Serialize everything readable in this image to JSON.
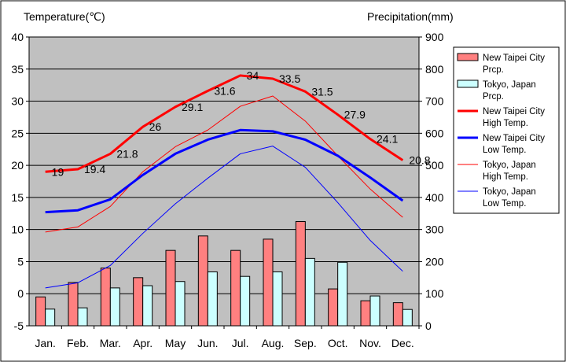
{
  "chart_data": {
    "type": "bar",
    "left_axis_title": "Temperature(℃)",
    "right_axis_title": "Precipitation(mm)",
    "categories": [
      "Jan.",
      "Feb.",
      "Mar.",
      "Apr.",
      "May",
      "Jun.",
      "Jul.",
      "Aug.",
      "Sep.",
      "Oct.",
      "Nov.",
      "Dec."
    ],
    "temp_axis": {
      "min": -5,
      "max": 40,
      "step": 5
    },
    "prcp_axis": {
      "min": 0,
      "max": 900,
      "step": 100
    },
    "grid": true,
    "legend_position": "right",
    "bar_series": [
      {
        "legend": [
          "New Taipei City",
          "Prcp."
        ],
        "color": "#ff8080",
        "values": [
          90,
          135,
          180,
          150,
          235,
          280,
          235,
          270,
          325,
          115,
          78,
          72
        ]
      },
      {
        "legend": [
          "Tokyo, Japan",
          "Prcp."
        ],
        "color": "#ccffff",
        "values": [
          52,
          56,
          118,
          125,
          138,
          168,
          154,
          168,
          210,
          198,
          93,
          51
        ]
      }
    ],
    "line_series": [
      {
        "legend": [
          "New Taipei City",
          "High Temp."
        ],
        "color": "#ff0000",
        "width": 3,
        "values": [
          19,
          19.4,
          21.8,
          26,
          29.1,
          31.6,
          34,
          33.5,
          31.5,
          27.9,
          24.1,
          20.8
        ],
        "labels": [
          "19",
          "19.4",
          "21.8",
          "26",
          "29.1",
          "31.6",
          "34",
          "33.5",
          "31.5",
          "27.9",
          "24.1",
          "20.8"
        ]
      },
      {
        "legend": [
          "New Taipei City",
          "Low Temp."
        ],
        "color": "#0000ff",
        "width": 3,
        "values": [
          12.7,
          13.0,
          14.7,
          18.5,
          21.8,
          24.0,
          25.5,
          25.3,
          24.0,
          21.5,
          18.1,
          14.5
        ]
      },
      {
        "legend": [
          "Tokyo, Japan",
          "High Temp."
        ],
        "color": "#ff0000",
        "width": 1,
        "values": [
          9.6,
          10.4,
          13.6,
          19.0,
          22.9,
          25.5,
          29.2,
          30.8,
          26.9,
          21.5,
          16.3,
          11.9
        ]
      },
      {
        "legend": [
          "Tokyo, Japan",
          "Low Temp."
        ],
        "color": "#0000ff",
        "width": 1,
        "values": [
          0.9,
          1.7,
          4.4,
          9.4,
          14.0,
          18.0,
          21.8,
          23.0,
          19.7,
          14.2,
          8.3,
          3.5
        ]
      }
    ]
  }
}
